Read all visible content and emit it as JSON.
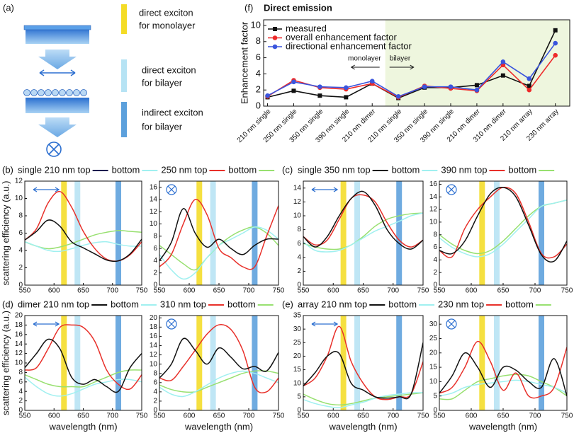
{
  "panel_a": {
    "label": "(a)",
    "legend": [
      [
        "direct exciton",
        "for monolayer"
      ],
      [
        "direct exciton",
        "for bilayer"
      ],
      [
        "indirect exciton",
        "for bilayer"
      ]
    ]
  },
  "exciton_bands": [
    {
      "x": 617,
      "color": "#f2d600"
    },
    {
      "x": 640,
      "color": "#a9def2"
    },
    {
      "x": 710,
      "color": "#3f8fd6"
    }
  ],
  "rows": [
    {
      "panel_label": "(b)",
      "y_label": "scattering efficiency (a.u.)",
      "legend": [
        {
          "label": "single 210 nm top",
          "color": "#1b1b4f"
        },
        {
          "label": "bottom",
          "color": "#a0f0f0"
        },
        {
          "label": "250 nm top",
          "color": "#e8302a"
        },
        {
          "label": "bottom",
          "color": "#98e070"
        }
      ]
    },
    {
      "panel_label": "(c)",
      "legend": [
        {
          "label": "single 350 nm top",
          "color": "#111111"
        },
        {
          "label": "bottom",
          "color": "#a0f0f0"
        },
        {
          "label": "390 nm top",
          "color": "#e8302a"
        },
        {
          "label": "bottom",
          "color": "#98e070"
        }
      ]
    },
    {
      "panel_label": "(d)",
      "y_label": "scattering efficiency (a.u.)",
      "legend": [
        {
          "label": "dimer 210 nm top",
          "color": "#111111"
        },
        {
          "label": "bottom",
          "color": "#a0f0f0"
        },
        {
          "label": "310 nm top",
          "color": "#e8302a"
        },
        {
          "label": "bottom",
          "color": "#98e070"
        }
      ]
    },
    {
      "panel_label": "(e)",
      "legend": [
        {
          "label": "array 210 nm top",
          "color": "#111111"
        },
        {
          "label": "bottom",
          "color": "#a0f0f0"
        },
        {
          "label": "230 nm top",
          "color": "#e8302a"
        },
        {
          "label": "bottom",
          "color": "#98e070"
        }
      ]
    }
  ],
  "chart_data": [
    {
      "type": "category-line",
      "panel_label": "(f)",
      "title": "Direct emission",
      "ylabel": "Enhancement factor",
      "categories": [
        "210 nm single",
        "250 nm single",
        "350 nm single",
        "390 nm single",
        "210 nm dimer",
        "210 nm single",
        "350 nm single",
        "390 nm single",
        "210 nm dimer",
        "310 nm dimer",
        "210 nm array",
        "230 nm array"
      ],
      "series": [
        {
          "name": "measured",
          "color": "#111111",
          "marker": "square",
          "values": [
            1.1,
            1.9,
            1.3,
            1.1,
            2.8,
            1.0,
            2.3,
            2.3,
            2.6,
            3.8,
            2.5,
            9.4
          ]
        },
        {
          "name": "overall enhancement factor",
          "color": "#ee2a2a",
          "marker": "circle",
          "values": [
            1.2,
            3.2,
            2.3,
            2.1,
            2.8,
            1.1,
            2.5,
            2.2,
            1.9,
            5.1,
            2.0,
            6.3
          ]
        },
        {
          "name": "directional enhancement factor",
          "color": "#3a55dd",
          "marker": "circle",
          "values": [
            1.3,
            3.0,
            2.4,
            2.3,
            3.1,
            1.2,
            2.4,
            2.4,
            2.0,
            5.5,
            3.4,
            7.8
          ]
        }
      ],
      "ylim": [
        0,
        10.7
      ],
      "yticks": [
        0,
        2,
        4,
        6,
        8,
        10
      ],
      "annotations": [
        "monolayer",
        "bilayer"
      ],
      "shade_start_index": 5,
      "shade_color": "#eef6de"
    },
    {
      "type": "line",
      "x": [
        550,
        570,
        590,
        610,
        630,
        650,
        670,
        690,
        710,
        730,
        750
      ],
      "xlim": [
        550,
        750
      ],
      "xticks": [
        550,
        600,
        650,
        700,
        750
      ],
      "ylim": [
        0,
        12
      ],
      "yticks": [
        0,
        2,
        4,
        6,
        8,
        10,
        12
      ],
      "series": [
        {
          "color": "#98e070",
          "values": [
            5.0,
            4.5,
            4.2,
            4.4,
            4.8,
            5.3,
            5.8,
            6.1,
            6.3,
            6.2,
            6.1
          ]
        },
        {
          "color": "#a0f0f0",
          "values": [
            5.0,
            4.5,
            4.0,
            3.9,
            4.2,
            4.6,
            4.9,
            5.0,
            4.7,
            4.5,
            4.5
          ]
        },
        {
          "color": "#e8302a",
          "values": [
            5.2,
            6.5,
            9.5,
            10.8,
            9.0,
            6.2,
            4.2,
            3.0,
            2.8,
            3.5,
            5.0
          ]
        },
        {
          "color": "#111111",
          "values": [
            5.2,
            6.2,
            7.5,
            6.8,
            5.0,
            4.3,
            3.6,
            2.9,
            2.8,
            3.6,
            5.3
          ]
        }
      ]
    },
    {
      "type": "line",
      "x": [
        550,
        570,
        590,
        610,
        630,
        650,
        670,
        690,
        710,
        730,
        750
      ],
      "xlim": [
        550,
        750
      ],
      "xticks": [
        550,
        600,
        650,
        700,
        750
      ],
      "ylim": [
        0,
        17
      ],
      "yticks": [
        0,
        2,
        4,
        6,
        8,
        10,
        12,
        14,
        16
      ],
      "series": [
        {
          "color": "#98e070",
          "values": [
            6.5,
            5.0,
            3.5,
            2.5,
            4.5,
            6.5,
            8.0,
            9.0,
            9.5,
            8.5,
            6.5
          ]
        },
        {
          "color": "#a0f0f0",
          "values": [
            5.0,
            2.5,
            1.0,
            2.0,
            4.5,
            6.5,
            7.5,
            8.5,
            9.5,
            9.0,
            7.5
          ]
        },
        {
          "color": "#e8302a",
          "values": [
            3.0,
            5.0,
            10.0,
            14.0,
            11.5,
            6.0,
            4.5,
            3.0,
            3.0,
            8.0,
            13.0
          ]
        },
        {
          "color": "#111111",
          "values": [
            4.0,
            7.0,
            12.5,
            8.5,
            6.2,
            7.5,
            6.0,
            5.0,
            6.5,
            7.5,
            7.5
          ]
        }
      ]
    },
    {
      "type": "line",
      "x": [
        550,
        570,
        590,
        610,
        630,
        650,
        670,
        690,
        710,
        730,
        750
      ],
      "xlim": [
        550,
        750
      ],
      "xticks": [
        550,
        600,
        650,
        700,
        750
      ],
      "ylim": [
        0,
        15
      ],
      "yticks": [
        0,
        2,
        4,
        6,
        8,
        10,
        12,
        14
      ],
      "series": [
        {
          "color": "#98e070",
          "values": [
            6.0,
            5.5,
            5.2,
            5.2,
            5.8,
            7.0,
            8.5,
            9.5,
            10.0,
            10.3,
            10.4
          ]
        },
        {
          "color": "#a0f0f0",
          "values": [
            6.2,
            5.0,
            4.8,
            5.0,
            5.8,
            6.8,
            7.8,
            8.5,
            9.2,
            10.0,
            10.4
          ]
        },
        {
          "color": "#e8302a",
          "values": [
            7.0,
            5.8,
            6.5,
            9.5,
            12.5,
            13.0,
            12.0,
            9.0,
            6.5,
            5.5,
            6.5
          ]
        },
        {
          "color": "#111111",
          "values": [
            7.0,
            5.5,
            7.0,
            10.0,
            12.5,
            13.5,
            11.5,
            8.0,
            6.0,
            5.2,
            6.5
          ]
        }
      ]
    },
    {
      "type": "line",
      "x": [
        550,
        570,
        590,
        610,
        630,
        650,
        670,
        690,
        710,
        730,
        750
      ],
      "xlim": [
        550,
        750
      ],
      "xticks": [
        550,
        600,
        650,
        700,
        750
      ],
      "ylim": [
        0,
        16.5
      ],
      "yticks": [
        0,
        2,
        4,
        6,
        8,
        10,
        12,
        14,
        16
      ],
      "series": [
        {
          "color": "#98e070",
          "values": [
            8.0,
            6.5,
            5.5,
            5.0,
            5.5,
            7.0,
            9.0,
            11.0,
            12.5,
            13.0,
            13.5
          ]
        },
        {
          "color": "#a0f0f0",
          "values": [
            7.5,
            6.0,
            5.0,
            4.5,
            5.0,
            6.5,
            8.5,
            10.5,
            12.5,
            13.0,
            13.5
          ]
        },
        {
          "color": "#e8302a",
          "values": [
            5.5,
            4.5,
            9.0,
            12.0,
            14.0,
            15.5,
            14.5,
            10.0,
            5.0,
            4.5,
            6.5
          ]
        },
        {
          "color": "#111111",
          "values": [
            5.5,
            5.0,
            7.0,
            11.0,
            14.5,
            15.5,
            14.0,
            9.5,
            4.8,
            3.8,
            7.0
          ]
        }
      ]
    },
    {
      "type": "line",
      "x": [
        550,
        570,
        590,
        610,
        630,
        650,
        670,
        690,
        710,
        730,
        750
      ],
      "xlim": [
        550,
        750
      ],
      "xticks": [
        550,
        600,
        650,
        700,
        750
      ],
      "ylim": [
        0,
        20
      ],
      "yticks": [
        0,
        2,
        4,
        6,
        8,
        10,
        12,
        14,
        16,
        18,
        20
      ],
      "xlabel": "wavelength (nm)",
      "series": [
        {
          "color": "#98e070",
          "values": [
            7.5,
            6.5,
            5.5,
            5.0,
            5.0,
            5.0,
            6.0,
            7.0,
            8.0,
            8.5,
            8.5
          ]
        },
        {
          "color": "#a0f0f0",
          "values": [
            7.0,
            5.0,
            3.5,
            3.0,
            3.5,
            4.5,
            5.5,
            6.0,
            6.5,
            6.5,
            6.0
          ]
        },
        {
          "color": "#e8302a",
          "values": [
            8.5,
            9.0,
            13.0,
            17.5,
            18.0,
            17.5,
            14.5,
            8.5,
            5.5,
            4.5,
            7.5
          ]
        },
        {
          "color": "#111111",
          "values": [
            9.0,
            12.0,
            15.0,
            13.0,
            7.0,
            5.5,
            6.5,
            5.0,
            4.0,
            9.0,
            12.0
          ]
        }
      ]
    },
    {
      "type": "line",
      "x": [
        550,
        570,
        590,
        610,
        630,
        650,
        670,
        690,
        710,
        730,
        750
      ],
      "xlim": [
        550,
        750
      ],
      "xticks": [
        550,
        600,
        650,
        700,
        750
      ],
      "ylim": [
        0,
        20.5
      ],
      "yticks": [
        0,
        2,
        4,
        6,
        8,
        10,
        12,
        14,
        16,
        18,
        20
      ],
      "xlabel": "wavelength (nm)",
      "series": [
        {
          "color": "#98e070",
          "values": [
            5.5,
            4.5,
            4.0,
            4.0,
            5.0,
            6.0,
            7.0,
            8.0,
            8.5,
            8.5,
            8.0
          ]
        },
        {
          "color": "#a0f0f0",
          "values": [
            5.0,
            3.5,
            3.0,
            4.0,
            5.5,
            7.0,
            8.0,
            8.5,
            8.0,
            7.0,
            6.0
          ]
        },
        {
          "color": "#e8302a",
          "values": [
            7.0,
            6.5,
            9.5,
            13.0,
            16.5,
            18.5,
            17.5,
            13.0,
            5.0,
            4.0,
            7.0
          ]
        },
        {
          "color": "#111111",
          "values": [
            7.0,
            10.0,
            15.5,
            13.0,
            10.0,
            13.5,
            11.5,
            9.0,
            9.5,
            8.5,
            12.5
          ]
        }
      ]
    },
    {
      "type": "line",
      "x": [
        550,
        570,
        590,
        610,
        630,
        650,
        670,
        690,
        710,
        730,
        750
      ],
      "xlim": [
        550,
        750
      ],
      "xticks": [
        550,
        600,
        650,
        700,
        750
      ],
      "ylim": [
        0,
        35
      ],
      "yticks": [
        0,
        5,
        10,
        15,
        20,
        25,
        30,
        35
      ],
      "xlabel": "wavelength (nm)",
      "series": [
        {
          "color": "#98e070",
          "values": [
            6.0,
            4.0,
            2.5,
            2.0,
            2.5,
            3.5,
            4.5,
            5.0,
            5.5,
            6.0,
            6.5
          ]
        },
        {
          "color": "#a0f0f0",
          "values": [
            4.0,
            2.5,
            1.5,
            1.0,
            2.0,
            3.0,
            4.5,
            5.5,
            6.0,
            6.5,
            6.5
          ]
        },
        {
          "color": "#e8302a",
          "values": [
            9.0,
            12.0,
            20.0,
            31.0,
            18.0,
            10.0,
            5.0,
            4.0,
            5.0,
            6.0,
            18.0
          ]
        },
        {
          "color": "#111111",
          "values": [
            9.0,
            14.0,
            20.0,
            21.0,
            10.0,
            7.5,
            5.0,
            4.5,
            5.0,
            6.0,
            25.0
          ]
        }
      ]
    },
    {
      "type": "line",
      "x": [
        550,
        570,
        590,
        610,
        630,
        650,
        670,
        690,
        710,
        730,
        750
      ],
      "xlim": [
        550,
        750
      ],
      "xticks": [
        550,
        600,
        650,
        700,
        750
      ],
      "ylim": [
        0,
        33
      ],
      "yticks": [
        0,
        5,
        10,
        15,
        20,
        25,
        30
      ],
      "xlabel": "wavelength (nm)",
      "series": [
        {
          "color": "#98e070",
          "values": [
            4.0,
            4.0,
            7.0,
            10.0,
            11.0,
            12.0,
            12.5,
            12.0,
            10.0,
            8.0,
            5.0
          ]
        },
        {
          "color": "#a0f0f0",
          "values": [
            5.0,
            6.0,
            8.0,
            9.0,
            9.5,
            10.0,
            10.5,
            10.0,
            9.0,
            8.0,
            6.0
          ]
        },
        {
          "color": "#e8302a",
          "values": [
            6.0,
            8.0,
            15.0,
            24.0,
            17.0,
            7.0,
            13.0,
            5.0,
            5.0,
            8.0,
            22.0
          ]
        },
        {
          "color": "#111111",
          "values": [
            6.0,
            12.0,
            20.0,
            15.0,
            8.0,
            15.0,
            14.0,
            10.0,
            8.0,
            18.0,
            5.0
          ]
        }
      ]
    }
  ]
}
